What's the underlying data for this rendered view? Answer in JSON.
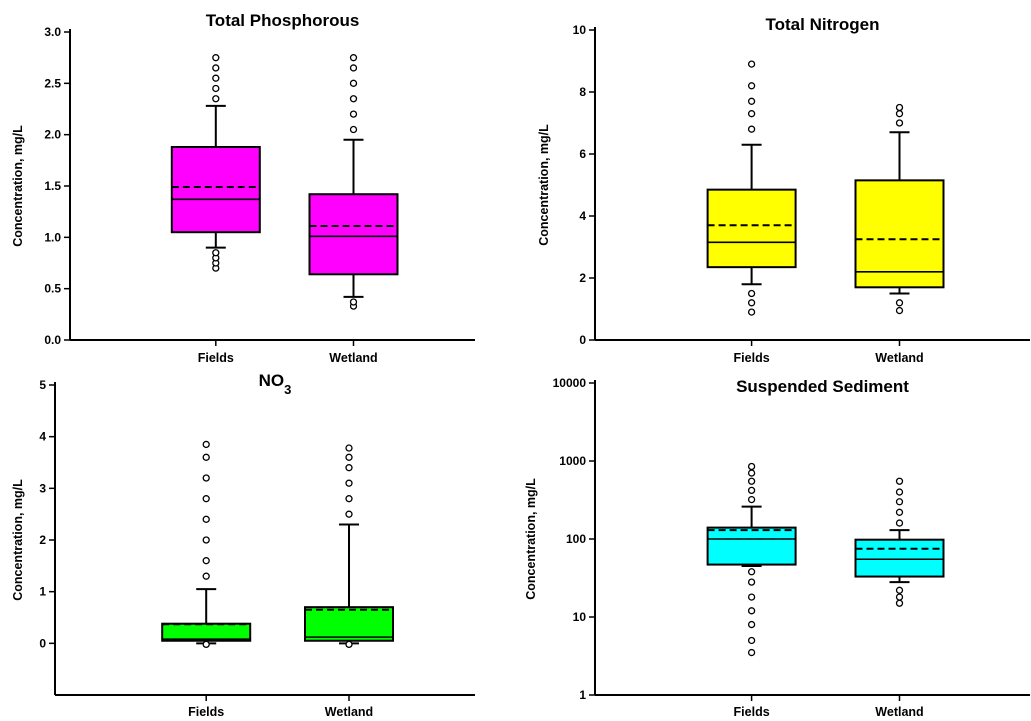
{
  "chart_data": [
    {
      "type": "box",
      "title": "Total Phosphorous",
      "ylabel": "Concentration, mg/L",
      "xlabel": "",
      "yscale": "linear",
      "ylim": [
        0,
        3
      ],
      "yticks": [
        0,
        0.5,
        1,
        1.5,
        2,
        2.5,
        3
      ],
      "ytick_labels": [
        "0.0",
        "0.5",
        "1.0",
        "1.5",
        "2.0",
        "2.5",
        "3.0"
      ],
      "categories": [
        "Fields",
        "Wetland"
      ],
      "boxes": [
        {
          "name": "Fields",
          "color": "#ff00ff",
          "q1": 1.05,
          "median": 1.37,
          "mean": 1.49,
          "q3": 1.88,
          "whisker_low": 0.9,
          "whisker_high": 2.28,
          "outliers_low": [
            0.7,
            0.75,
            0.8,
            0.85
          ],
          "outliers_high": [
            2.35,
            2.45,
            2.55,
            2.65,
            2.75
          ]
        },
        {
          "name": "Wetland",
          "color": "#ff00ff",
          "q1": 0.64,
          "median": 1.01,
          "mean": 1.11,
          "q3": 1.42,
          "whisker_low": 0.42,
          "whisker_high": 1.95,
          "outliers_low": [
            0.33,
            0.37
          ],
          "outliers_high": [
            2.05,
            2.2,
            2.35,
            2.5,
            2.65,
            2.75
          ]
        }
      ]
    },
    {
      "type": "box",
      "title": "Total Nitrogen",
      "ylabel": "Concentration, mg/L",
      "xlabel": "",
      "yscale": "linear",
      "ylim": [
        0,
        10
      ],
      "yticks": [
        0,
        2,
        4,
        6,
        8,
        10
      ],
      "ytick_labels": [
        "0",
        "2",
        "4",
        "6",
        "8",
        "10"
      ],
      "categories": [
        "Fields",
        "Wetland"
      ],
      "boxes": [
        {
          "name": "Fields",
          "color": "#ffff00",
          "q1": 2.35,
          "median": 3.15,
          "mean": 3.7,
          "q3": 4.85,
          "whisker_low": 1.8,
          "whisker_high": 6.3,
          "outliers_low": [
            0.9,
            1.2,
            1.5
          ],
          "outliers_high": [
            6.8,
            7.3,
            7.7,
            8.2,
            8.9
          ]
        },
        {
          "name": "Wetland",
          "color": "#ffff00",
          "q1": 1.7,
          "median": 2.2,
          "mean": 3.25,
          "q3": 5.15,
          "whisker_low": 1.5,
          "whisker_high": 6.7,
          "outliers_low": [
            0.95,
            1.2
          ],
          "outliers_high": [
            7.0,
            7.3,
            7.5
          ]
        }
      ]
    },
    {
      "type": "box",
      "title": "NO3",
      "ylabel": "Concentration, mg/L",
      "xlabel": "",
      "yscale": "linear",
      "ylim": [
        -1,
        5
      ],
      "yticks": [
        0,
        1,
        2,
        3,
        4,
        5
      ],
      "ytick_labels": [
        "0",
        "1",
        "2",
        "3",
        "4",
        "5"
      ],
      "categories": [
        "Fields",
        "Wetland"
      ],
      "boxes": [
        {
          "name": "Fields",
          "color": "#00ff00",
          "q1": 0.05,
          "median": 0.08,
          "mean": 0.37,
          "q3": 0.38,
          "whisker_low": 0.0,
          "whisker_high": 1.05,
          "outliers_low": [
            -0.02
          ],
          "outliers_high": [
            1.3,
            1.6,
            2.0,
            2.4,
            2.8,
            3.2,
            3.6,
            3.85
          ]
        },
        {
          "name": "Wetland",
          "color": "#00ff00",
          "q1": 0.05,
          "median": 0.12,
          "mean": 0.65,
          "q3": 0.7,
          "whisker_low": 0.0,
          "whisker_high": 2.3,
          "outliers_low": [
            -0.02
          ],
          "outliers_high": [
            2.5,
            2.8,
            3.1,
            3.4,
            3.6,
            3.78
          ]
        }
      ]
    },
    {
      "type": "box",
      "title": "Suspended Sediment",
      "ylabel": "Concentration, mg/L",
      "xlabel": "",
      "yscale": "log",
      "ylim": [
        1,
        10000
      ],
      "yticks": [
        1,
        10,
        100,
        1000,
        10000
      ],
      "ytick_labels": [
        "1",
        "10",
        "100",
        "1000",
        "10000"
      ],
      "categories": [
        "Fields",
        "Wetland"
      ],
      "boxes": [
        {
          "name": "Fields",
          "color": "#00ffff",
          "q1": 47,
          "median": 100,
          "mean": 130,
          "q3": 140,
          "whisker_low": 45,
          "whisker_high": 260,
          "outliers_low": [
            3.5,
            5,
            8,
            12,
            18,
            28,
            38
          ],
          "outliers_high": [
            320,
            420,
            550,
            700,
            850
          ]
        },
        {
          "name": "Wetland",
          "color": "#00ffff",
          "q1": 33,
          "median": 55,
          "mean": 75,
          "q3": 98,
          "whisker_low": 28,
          "whisker_high": 130,
          "outliers_low": [
            15,
            18,
            22
          ],
          "outliers_high": [
            160,
            220,
            300,
            400,
            550
          ]
        }
      ]
    }
  ]
}
